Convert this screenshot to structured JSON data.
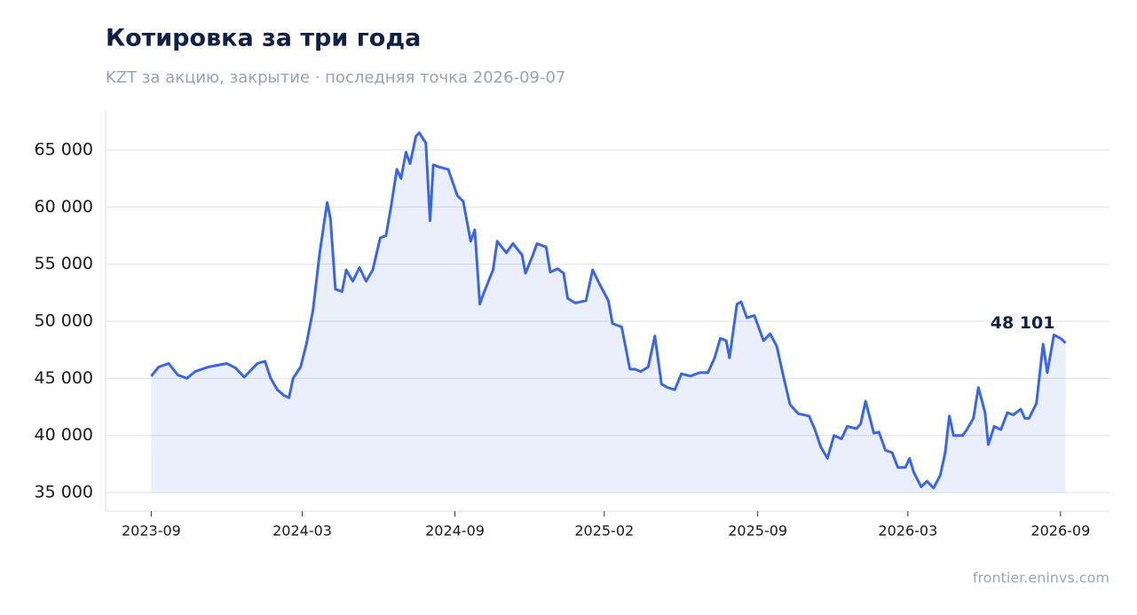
{
  "chart_data": {
    "type": "line",
    "title": "Котировка за три года",
    "subtitle": "KZT за акцию, закрытие · последняя точка 2026-09-07",
    "source": "frontier.eninvs.com",
    "color": "#3a66e0",
    "grid": true,
    "xlim": [
      "2023-07-08",
      "2026-10-30"
    ],
    "ylim": [
      33370,
      68570
    ],
    "yticks": [
      {
        "value": 35000,
        "label": "35 000"
      },
      {
        "value": 40000,
        "label": "40 000"
      },
      {
        "value": 45000,
        "label": "45 000"
      },
      {
        "value": 50000,
        "label": "50 000"
      },
      {
        "value": 55000,
        "label": "55 000"
      },
      {
        "value": 60000,
        "label": "60 000"
      },
      {
        "value": 65000,
        "label": "65 000"
      }
    ],
    "xticks": [
      {
        "value": "2023-09-01",
        "label": "2023-09"
      },
      {
        "value": "2024-03-01",
        "label": "2024-03"
      },
      {
        "value": "2024-09-01",
        "label": "2024-09"
      },
      {
        "value": "2025-02-28",
        "label": "2025-02"
      },
      {
        "value": "2025-09-01",
        "label": "2025-09"
      },
      {
        "value": "2026-03-01",
        "label": "2026-03"
      },
      {
        "value": "2026-09-01",
        "label": "2026-09"
      }
    ],
    "x": [
      "2023-09-01",
      "2023-09-10",
      "2023-09-22",
      "2023-10-03",
      "2023-10-14",
      "2023-10-24",
      "2023-11-09",
      "2023-12-01",
      "2023-12-12",
      "2023-12-22",
      "2024-01-07",
      "2024-01-16",
      "2024-01-23",
      "2024-01-31",
      "2024-02-08",
      "2024-02-14",
      "2024-02-19",
      "2024-02-28",
      "2024-03-06",
      "2024-03-14",
      "2024-03-22",
      "2024-03-31",
      "2024-04-04",
      "2024-04-10",
      "2024-04-18",
      "2024-04-23",
      "2024-05-01",
      "2024-05-09",
      "2024-05-17",
      "2024-05-25",
      "2024-06-03",
      "2024-06-10",
      "2024-06-16",
      "2024-06-23",
      "2024-06-28",
      "2024-07-04",
      "2024-07-09",
      "2024-07-16",
      "2024-07-20",
      "2024-07-28",
      "2024-08-02",
      "2024-08-06",
      "2024-08-13",
      "2024-08-24",
      "2024-09-04",
      "2024-09-11",
      "2024-09-20",
      "2024-09-25",
      "2024-10-01",
      "2024-10-06",
      "2024-10-17",
      "2024-10-22",
      "2024-11-02",
      "2024-11-10",
      "2024-11-21",
      "2024-11-25",
      "2024-12-04",
      "2024-12-09",
      "2024-12-20",
      "2024-12-25",
      "2025-01-03",
      "2025-01-10",
      "2025-01-15",
      "2025-01-24",
      "2025-02-06",
      "2025-02-14",
      "2025-02-22",
      "2025-03-05",
      "2025-03-10",
      "2025-03-21",
      "2025-03-31",
      "2025-04-06",
      "2025-04-13",
      "2025-04-22",
      "2025-04-30",
      "2025-05-08",
      "2025-05-15",
      "2025-05-24",
      "2025-06-01",
      "2025-06-12",
      "2025-06-23",
      "2025-07-03",
      "2025-07-11",
      "2025-07-18",
      "2025-07-25",
      "2025-07-29",
      "2025-08-07",
      "2025-08-12",
      "2025-08-19",
      "2025-08-28",
      "2025-09-08",
      "2025-09-16",
      "2025-09-24",
      "2025-10-01",
      "2025-10-10",
      "2025-10-20",
      "2025-11-02",
      "2025-11-09",
      "2025-11-16",
      "2025-11-24",
      "2025-12-02",
      "2025-12-11",
      "2025-12-18",
      "2025-12-29",
      "2026-01-03",
      "2026-01-09",
      "2026-01-14",
      "2026-01-19",
      "2026-01-25",
      "2026-02-02",
      "2026-02-10",
      "2026-02-17",
      "2026-02-26",
      "2026-03-03",
      "2026-03-08",
      "2026-03-17",
      "2026-03-24",
      "2026-04-01",
      "2026-04-09",
      "2026-04-15",
      "2026-04-20",
      "2026-04-25",
      "2026-05-06",
      "2026-05-11",
      "2026-05-19",
      "2026-05-25",
      "2026-06-02",
      "2026-06-06",
      "2026-06-13",
      "2026-06-21",
      "2026-06-29",
      "2026-07-06",
      "2026-07-15",
      "2026-07-20",
      "2026-07-25",
      "2026-08-03",
      "2026-08-11",
      "2026-08-16",
      "2026-08-24",
      "2026-09-01",
      "2026-09-07"
    ],
    "values": [
      45200,
      46000,
      46300,
      45300,
      45000,
      45600,
      46000,
      46300,
      45900,
      45100,
      46300,
      46500,
      45000,
      44000,
      43500,
      43300,
      45000,
      46000,
      48000,
      51000,
      56000,
      60400,
      59000,
      52800,
      52600,
      54500,
      53500,
      54700,
      53500,
      54500,
      57300,
      57500,
      60000,
      63300,
      62500,
      64800,
      63800,
      66200,
      66500,
      65600,
      58800,
      63700,
      63500,
      63300,
      61000,
      60500,
      57000,
      58000,
      51500,
      52500,
      54500,
      57000,
      56000,
      56800,
      55800,
      54200,
      55800,
      56800,
      56500,
      54300,
      54600,
      54200,
      52000,
      51600,
      51800,
      54500,
      53300,
      51800,
      49800,
      49500,
      45800,
      45800,
      45600,
      46000,
      48700,
      44500,
      44200,
      44000,
      45400,
      45200,
      45500,
      45500,
      46800,
      48500,
      48300,
      46800,
      51500,
      51700,
      50300,
      50500,
      48300,
      48900,
      47800,
      45500,
      42700,
      41900,
      41700,
      40500,
      39000,
      38000,
      40000,
      39700,
      40800,
      40600,
      41000,
      43000,
      41600,
      40200,
      40300,
      38700,
      38500,
      37200,
      37200,
      38000,
      36800,
      35500,
      36000,
      35400,
      36500,
      38500,
      41700,
      40000,
      40000,
      40500,
      41500,
      44200,
      42000,
      39200,
      40800,
      40500,
      42000,
      41800,
      42300,
      41500,
      41500,
      42800,
      48000,
      45500,
      48800,
      48500,
      48101
    ],
    "value_labels": [
      null,
      null,
      null,
      null,
      null,
      null,
      null,
      null,
      null,
      null,
      null,
      null,
      null,
      null,
      null,
      null,
      null,
      null,
      null,
      null,
      null,
      null,
      null,
      null,
      null,
      null,
      null,
      null,
      null,
      null,
      null,
      null,
      null,
      null,
      null,
      null,
      null,
      null,
      null,
      null,
      null,
      null,
      null,
      null,
      null,
      null,
      null,
      null,
      null,
      null,
      null,
      null,
      null,
      null,
      null,
      null,
      null,
      null,
      null,
      null,
      null,
      null,
      null,
      null,
      null,
      null,
      null,
      null,
      null,
      null,
      null,
      null,
      null,
      null,
      null,
      null,
      null,
      null,
      null,
      null,
      null,
      null,
      null,
      null,
      null,
      null,
      null,
      null,
      null,
      null,
      null,
      null,
      null,
      null,
      null,
      null,
      null,
      null,
      null,
      null,
      null,
      null,
      null,
      null,
      null,
      null,
      null,
      null,
      null,
      null,
      null,
      null,
      null,
      null,
      null,
      null,
      null,
      null,
      null,
      null,
      null,
      null,
      null,
      null,
      null,
      null,
      null,
      null,
      null,
      null,
      null,
      null,
      null,
      null,
      null,
      null,
      null,
      null,
      null,
      null,
      "48 101"
    ]
  }
}
